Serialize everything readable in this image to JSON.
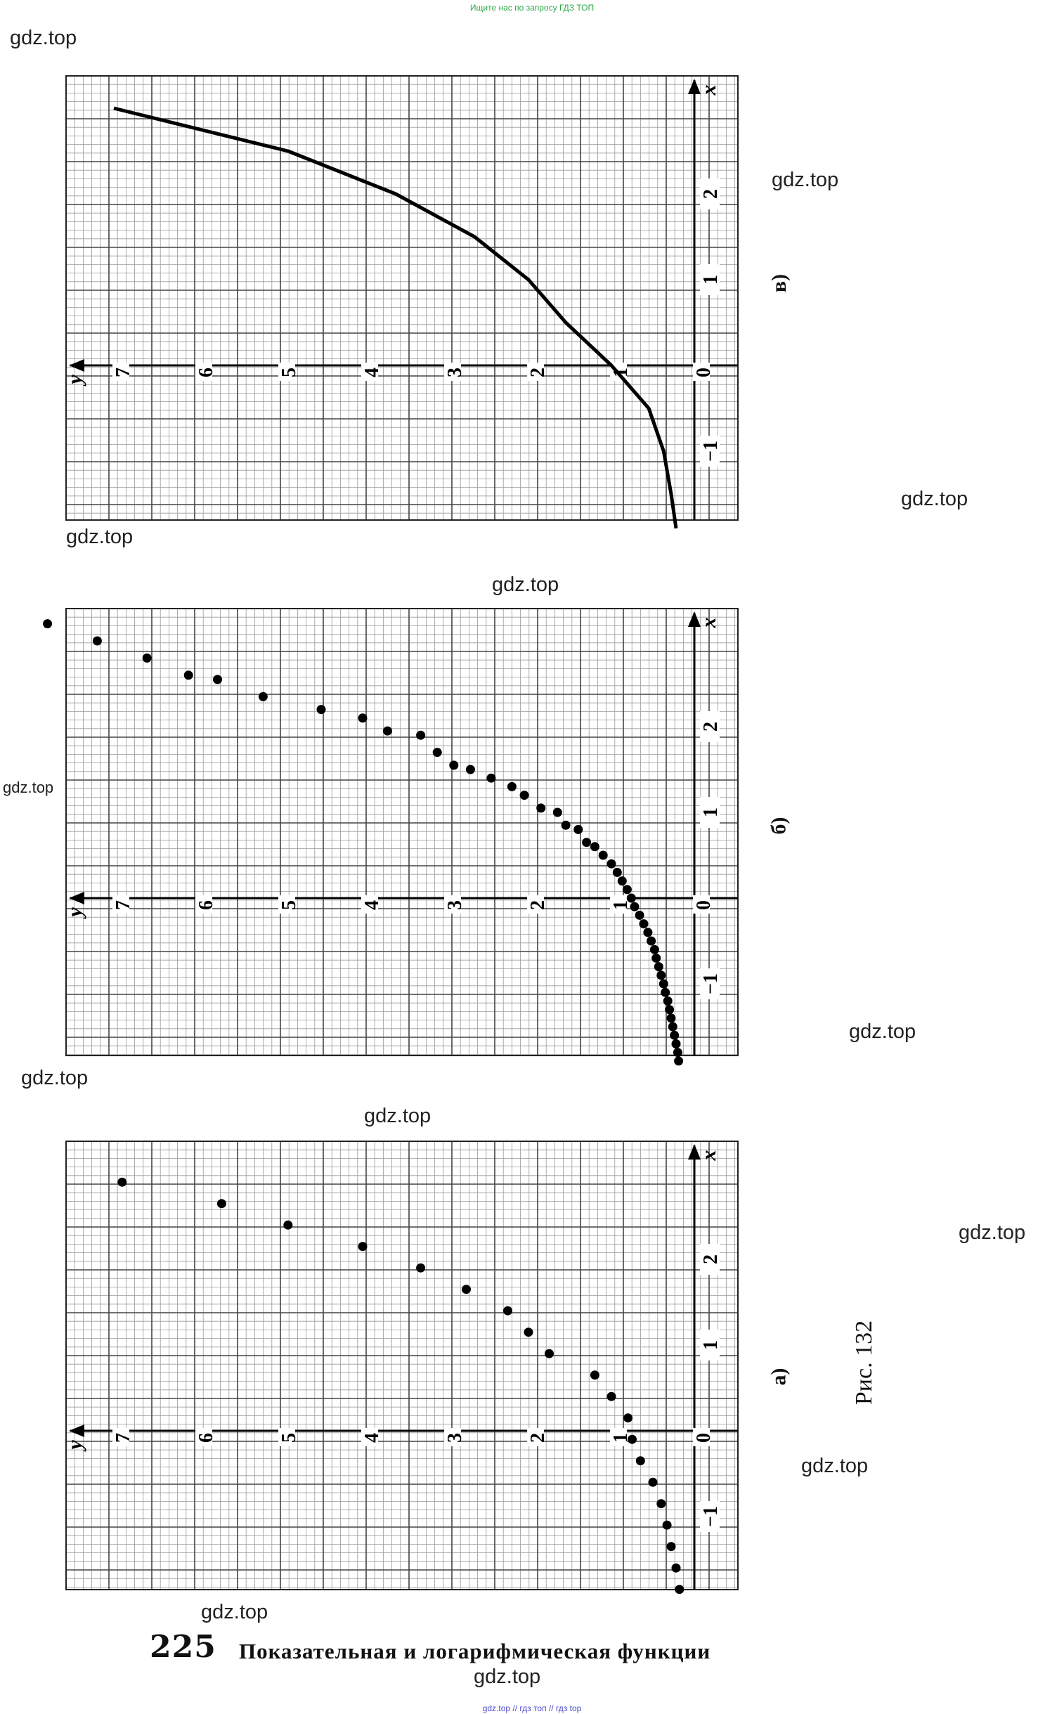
{
  "top_note": "Ищите нас по запросу ГДЗ ТОП",
  "bottom_note": "gdz.top  //  гдз топ  //  гдз top",
  "watermark": "gdz.top",
  "figure_caption": "Рис. 132",
  "page_number": "225",
  "page_title": "Показательная и логарифмическая функции",
  "graph_labels": {
    "y_axis": "y",
    "x_axis": "x",
    "y_ticks": [
      "7",
      "6",
      "5",
      "4",
      "3",
      "2",
      "1",
      "0"
    ],
    "x_ticks": [
      "2",
      "1",
      "−1"
    ]
  },
  "panels": [
    {
      "id": "v",
      "label": "в)",
      "kind": "curve"
    },
    {
      "id": "b",
      "label": "б)",
      "kind": "dense_points"
    },
    {
      "id": "a",
      "label": "а)",
      "kind": "sparse_points"
    }
  ],
  "chart_data": [
    {
      "type": "line",
      "label": "в)",
      "x": [
        -1.9,
        -1.5,
        -1.0,
        -0.5,
        0,
        0.5,
        1.0,
        1.5,
        2.0,
        2.5,
        3.0
      ],
      "y": [
        0.22,
        0.28,
        0.37,
        0.55,
        1.0,
        1.55,
        2.0,
        2.65,
        3.6,
        4.9,
        7.0
      ]
    },
    {
      "type": "scatter",
      "label": "б)",
      "x": [
        3.2,
        3.0,
        2.8,
        2.6,
        2.55,
        2.35,
        2.2,
        2.1,
        1.95,
        1.9,
        1.7,
        1.55,
        1.5,
        1.4,
        1.3,
        1.2,
        1.05,
        1.0,
        0.85,
        0.8,
        0.65,
        0.6,
        0.5,
        0.4,
        0.3,
        0.2,
        0.1,
        0.0,
        -0.1,
        -0.2,
        -0.3,
        -0.4,
        -0.5,
        -0.6,
        -0.7,
        -0.8,
        -0.9,
        -1.0,
        -1.1,
        -1.2,
        -1.3,
        -1.4,
        -1.5,
        -1.6,
        -1.7,
        -1.8,
        -1.9
      ],
      "y": [
        7.8,
        7.2,
        6.6,
        6.1,
        5.75,
        5.2,
        4.5,
        4.0,
        3.7,
        3.3,
        3.1,
        2.9,
        2.7,
        2.45,
        2.2,
        2.05,
        1.85,
        1.65,
        1.55,
        1.4,
        1.3,
        1.2,
        1.1,
        1.0,
        0.93,
        0.87,
        0.81,
        0.76,
        0.72,
        0.66,
        0.61,
        0.56,
        0.52,
        0.48,
        0.46,
        0.43,
        0.4,
        0.37,
        0.35,
        0.32,
        0.3,
        0.28,
        0.26,
        0.24,
        0.22,
        0.2,
        0.19
      ]
    },
    {
      "type": "scatter",
      "label": "а)",
      "x": [
        2.9,
        2.65,
        2.4,
        2.15,
        1.9,
        1.65,
        1.4,
        1.15,
        0.9,
        0.65,
        0.4,
        0.15,
        -0.1,
        -0.35,
        -0.6,
        -0.85,
        -1.1,
        -1.35,
        -1.6,
        -1.85
      ],
      "y": [
        6.9,
        5.7,
        4.9,
        4.0,
        3.3,
        2.75,
        2.25,
        2.0,
        1.75,
        1.2,
        1.0,
        0.8,
        0.75,
        0.65,
        0.5,
        0.4,
        0.33,
        0.28,
        0.22,
        0.18
      ]
    }
  ]
}
